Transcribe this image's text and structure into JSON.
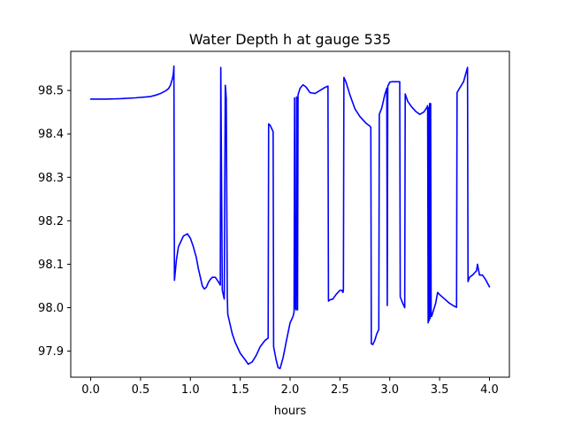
{
  "chart_data": {
    "type": "line",
    "title": "Water Depth h at gauge 535",
    "xlabel": "hours",
    "ylabel": "",
    "xlim": [
      -0.2,
      4.2
    ],
    "ylim": [
      97.84,
      98.59
    ],
    "xticks": [
      0.0,
      0.5,
      1.0,
      1.5,
      2.0,
      2.5,
      3.0,
      3.5,
      4.0
    ],
    "xtick_labels": [
      "0.0",
      "0.5",
      "1.0",
      "1.5",
      "2.0",
      "2.5",
      "3.0",
      "3.5",
      "4.0"
    ],
    "yticks": [
      97.9,
      98.0,
      98.1,
      98.2,
      98.3,
      98.4,
      98.5
    ],
    "ytick_labels": [
      "97.9",
      "98.0",
      "98.1",
      "98.2",
      "98.3",
      "98.4",
      "98.5"
    ],
    "grid": false,
    "legend": "none",
    "series": [
      {
        "color": "#0000ff",
        "x": [
          0.0,
          0.15,
          0.3,
          0.45,
          0.6,
          0.65,
          0.7,
          0.75,
          0.78,
          0.8,
          0.82,
          0.83,
          0.835,
          0.84,
          0.86,
          0.88,
          0.9,
          0.93,
          0.97,
          1.0,
          1.03,
          1.06,
          1.08,
          1.1,
          1.12,
          1.14,
          1.16,
          1.18,
          1.2,
          1.22,
          1.25,
          1.28,
          1.3,
          1.305,
          1.32,
          1.34,
          1.35,
          1.355,
          1.36,
          1.37,
          1.375,
          1.4,
          1.42,
          1.45,
          1.5,
          1.55,
          1.58,
          1.62,
          1.66,
          1.7,
          1.75,
          1.78,
          1.785,
          1.8,
          1.83,
          1.835,
          1.86,
          1.88,
          1.9,
          1.93,
          1.96,
          2.0,
          2.03,
          2.04,
          2.045,
          2.05,
          2.06,
          2.065,
          2.07,
          2.075,
          2.08,
          2.1,
          2.13,
          2.16,
          2.2,
          2.25,
          2.3,
          2.35,
          2.38,
          2.385,
          2.4,
          2.43,
          2.46,
          2.5,
          2.52,
          2.53,
          2.535,
          2.54,
          2.56,
          2.6,
          2.65,
          2.7,
          2.76,
          2.8,
          2.81,
          2.815,
          2.83,
          2.85,
          2.87,
          2.88,
          2.89,
          2.895,
          2.92,
          2.95,
          2.97,
          2.975,
          2.98,
          3.0,
          3.02,
          3.06,
          3.1,
          3.105,
          3.13,
          3.15,
          3.155,
          3.18,
          3.22,
          3.26,
          3.3,
          3.34,
          3.37,
          3.38,
          3.385,
          3.39,
          3.395,
          3.4,
          3.405,
          3.41,
          3.415,
          3.42,
          3.44,
          3.46,
          3.48,
          3.5,
          3.55,
          3.6,
          3.65,
          3.67,
          3.675,
          3.7,
          3.74,
          3.78,
          3.785,
          3.8,
          3.83,
          3.85,
          3.87,
          3.88,
          3.9,
          3.93,
          3.96,
          4.0
        ],
        "y": [
          98.48,
          98.48,
          98.481,
          98.483,
          98.486,
          98.489,
          98.493,
          98.499,
          98.504,
          98.512,
          98.527,
          98.54,
          98.556,
          98.063,
          98.11,
          98.14,
          98.15,
          98.165,
          98.17,
          98.16,
          98.14,
          98.115,
          98.09,
          98.07,
          98.05,
          98.043,
          98.047,
          98.058,
          98.065,
          98.07,
          98.07,
          98.06,
          98.052,
          98.553,
          98.04,
          98.02,
          98.512,
          98.5,
          98.48,
          98.03,
          97.985,
          97.96,
          97.94,
          97.92,
          97.895,
          97.88,
          97.87,
          97.875,
          97.89,
          97.91,
          97.925,
          97.93,
          98.423,
          98.42,
          98.405,
          97.91,
          97.88,
          97.862,
          97.86,
          97.885,
          97.92,
          97.965,
          97.98,
          97.99,
          98.483,
          98.0,
          97.995,
          98.485,
          98.48,
          97.995,
          98.49,
          98.505,
          98.513,
          98.508,
          98.495,
          98.493,
          98.5,
          98.507,
          98.51,
          98.015,
          98.018,
          98.02,
          98.03,
          98.04,
          98.04,
          98.035,
          98.04,
          98.53,
          98.52,
          98.49,
          98.458,
          98.44,
          98.425,
          98.418,
          98.415,
          97.917,
          97.915,
          97.925,
          97.94,
          97.945,
          97.95,
          98.445,
          98.46,
          98.49,
          98.505,
          98.005,
          98.51,
          98.519,
          98.52,
          98.52,
          98.52,
          98.025,
          98.01,
          98.0,
          98.492,
          98.475,
          98.462,
          98.452,
          98.445,
          98.45,
          98.46,
          98.465,
          97.965,
          98.46,
          97.97,
          98.47,
          97.975,
          98.47,
          97.98,
          97.98,
          97.995,
          98.01,
          98.035,
          98.03,
          98.02,
          98.01,
          98.003,
          98.001,
          98.495,
          98.505,
          98.52,
          98.553,
          98.06,
          98.07,
          98.075,
          98.08,
          98.085,
          98.1,
          98.075,
          98.075,
          98.065,
          98.048
        ]
      }
    ]
  }
}
